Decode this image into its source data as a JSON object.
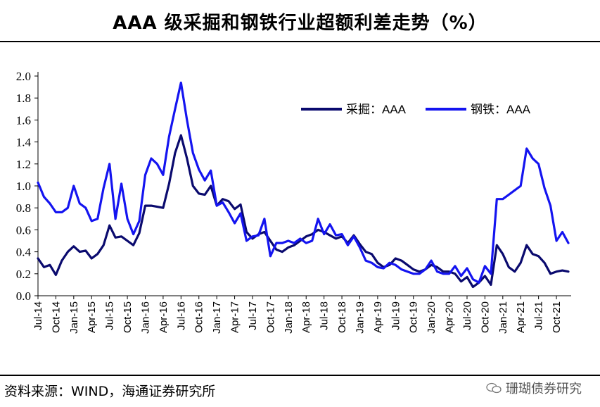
{
  "header": {
    "title": "AAA 级采掘和钢铁行业超额利差走势（%）"
  },
  "footer": {
    "source": "资料来源：WIND，海通证券研究所",
    "watermark": "珊瑚债券研究"
  },
  "chart_data": {
    "type": "line",
    "title": "AAA 级采掘和钢铁行业超额利差走势（%）",
    "xlabel": "",
    "ylabel": "",
    "ylim": [
      0.0,
      2.0
    ],
    "yticks": [
      "0.0",
      "0.2",
      "0.4",
      "0.6",
      "0.8",
      "1.0",
      "1.2",
      "1.4",
      "1.6",
      "1.8",
      "2.0"
    ],
    "x_tick_labels": [
      "Jul-14",
      "Oct-14",
      "Jan-15",
      "Apr-15",
      "Jul-15",
      "Oct-15",
      "Jan-16",
      "Apr-16",
      "Jul-16",
      "Oct-16",
      "Jan-17",
      "Apr-17",
      "Jul-17",
      "Oct-17",
      "Jan-18",
      "Apr-18",
      "Jul-18",
      "Oct-18",
      "Jan-19",
      "Apr-19",
      "Jul-19",
      "Oct-19",
      "Jan-20",
      "Apr-20",
      "Jul-20",
      "Oct-20",
      "Jan-21",
      "Apr-21",
      "Jul-21",
      "Oct-21"
    ],
    "grid": false,
    "legend_position": "top-right",
    "x": [
      "2014-07",
      "2014-08",
      "2014-09",
      "2014-10",
      "2014-11",
      "2014-12",
      "2015-01",
      "2015-02",
      "2015-03",
      "2015-04",
      "2015-05",
      "2015-06",
      "2015-07",
      "2015-08",
      "2015-09",
      "2015-10",
      "2015-11",
      "2015-12",
      "2016-01",
      "2016-02",
      "2016-03",
      "2016-04",
      "2016-05",
      "2016-06",
      "2016-07",
      "2016-08",
      "2016-09",
      "2016-10",
      "2016-11",
      "2016-12",
      "2017-01",
      "2017-02",
      "2017-03",
      "2017-04",
      "2017-05",
      "2017-06",
      "2017-07",
      "2017-08",
      "2017-09",
      "2017-10",
      "2017-11",
      "2017-12",
      "2018-01",
      "2018-02",
      "2018-03",
      "2018-04",
      "2018-05",
      "2018-06",
      "2018-07",
      "2018-08",
      "2018-09",
      "2018-10",
      "2018-11",
      "2018-12",
      "2019-01",
      "2019-02",
      "2019-03",
      "2019-04",
      "2019-05",
      "2019-06",
      "2019-07",
      "2019-08",
      "2019-09",
      "2019-10",
      "2019-11",
      "2019-12",
      "2020-01",
      "2020-02",
      "2020-03",
      "2020-04",
      "2020-05",
      "2020-06",
      "2020-07",
      "2020-08",
      "2020-09",
      "2020-10",
      "2020-11",
      "2020-12",
      "2021-01",
      "2021-02",
      "2021-03",
      "2021-04",
      "2021-05",
      "2021-06",
      "2021-07",
      "2021-08",
      "2021-09",
      "2021-10",
      "2021-11",
      "2021-12"
    ],
    "series": [
      {
        "name": "采掘：AAA",
        "color": "#0a0a6e",
        "values": [
          0.34,
          0.26,
          0.28,
          0.19,
          0.32,
          0.4,
          0.45,
          0.4,
          0.41,
          0.34,
          0.38,
          0.46,
          0.64,
          0.53,
          0.54,
          0.5,
          0.46,
          0.57,
          0.82,
          0.82,
          0.81,
          0.8,
          1.02,
          1.3,
          1.46,
          1.25,
          1.0,
          0.93,
          0.92,
          1.0,
          0.82,
          0.88,
          0.86,
          0.79,
          0.83,
          0.58,
          0.52,
          0.56,
          0.58,
          0.5,
          0.42,
          0.4,
          0.44,
          0.46,
          0.5,
          0.54,
          0.56,
          0.6,
          0.58,
          0.55,
          0.52,
          0.54,
          0.48,
          0.55,
          0.47,
          0.4,
          0.38,
          0.3,
          0.26,
          0.28,
          0.34,
          0.32,
          0.28,
          0.24,
          0.22,
          0.24,
          0.28,
          0.26,
          0.22,
          0.22,
          0.2,
          0.13,
          0.17,
          0.08,
          0.12,
          0.18,
          0.1,
          0.46,
          0.38,
          0.26,
          0.22,
          0.3,
          0.46,
          0.38,
          0.36,
          0.3,
          0.2,
          0.22,
          0.23,
          0.22
        ]
      },
      {
        "name": "钢铁：AAA",
        "color": "#1414f0",
        "values": [
          1.03,
          0.9,
          0.84,
          0.76,
          0.76,
          0.8,
          1.0,
          0.84,
          0.8,
          0.68,
          0.7,
          0.98,
          1.2,
          0.7,
          1.02,
          0.7,
          0.56,
          0.68,
          1.1,
          1.25,
          1.2,
          1.1,
          1.45,
          1.7,
          1.94,
          1.6,
          1.3,
          1.15,
          1.05,
          1.14,
          0.82,
          0.85,
          0.76,
          0.66,
          0.75,
          0.5,
          0.54,
          0.55,
          0.7,
          0.36,
          0.48,
          0.48,
          0.5,
          0.48,
          0.52,
          0.48,
          0.5,
          0.7,
          0.56,
          0.65,
          0.55,
          0.56,
          0.46,
          0.54,
          0.44,
          0.32,
          0.3,
          0.26,
          0.25,
          0.3,
          0.28,
          0.24,
          0.22,
          0.2,
          0.2,
          0.24,
          0.32,
          0.22,
          0.2,
          0.2,
          0.27,
          0.18,
          0.25,
          0.15,
          0.12,
          0.27,
          0.2,
          0.88,
          0.88,
          0.92,
          0.96,
          1.0,
          1.34,
          1.25,
          1.2,
          0.98,
          0.82,
          0.5,
          0.58,
          0.48
        ]
      }
    ]
  }
}
